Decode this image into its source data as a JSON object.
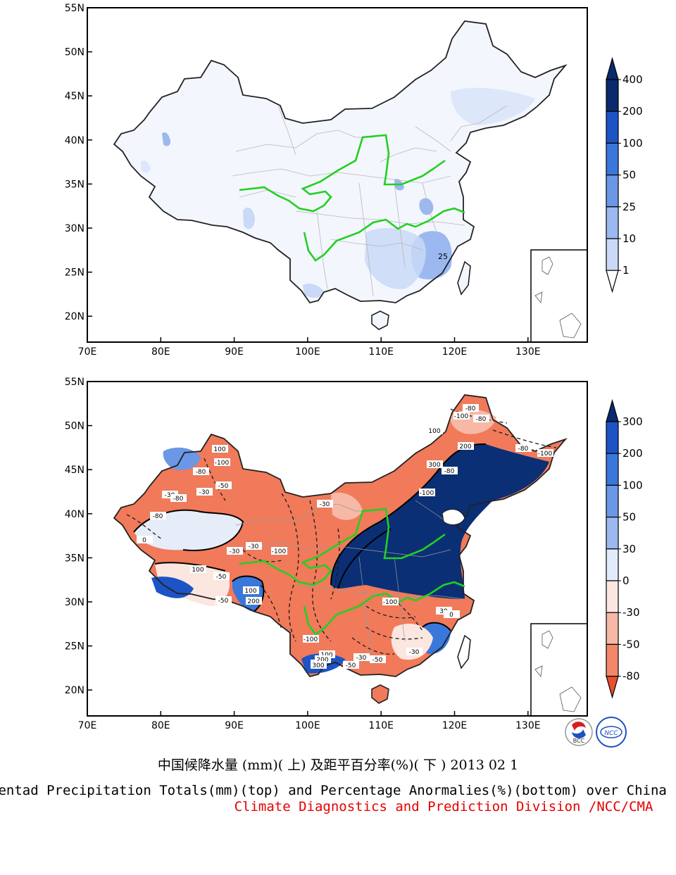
{
  "maps": {
    "lat_labels": [
      "55N",
      "50N",
      "45N",
      "40N",
      "35N",
      "30N",
      "25N",
      "20N"
    ],
    "lon_labels": [
      "70E",
      "80E",
      "90E",
      "100E",
      "110E",
      "120E",
      "130E"
    ],
    "top": {
      "contour_label": "25",
      "colorbar_labels": [
        "400",
        "200",
        "100",
        "50",
        "25",
        "10",
        "1"
      ],
      "colorbar_colors": [
        "#0a2a6e",
        "#1c54c6",
        "#3a77db",
        "#6b97e6",
        "#9bb8f0",
        "#c9d9f7",
        "#ffffff"
      ]
    },
    "bottom": {
      "contour_labels": [
        "-80",
        "-100",
        "-80",
        "100",
        "200",
        "-80",
        "-100",
        "300",
        "-80",
        "100",
        "-100",
        "-80",
        "-50",
        "-30",
        "-30",
        "-80",
        "-80",
        "-100",
        "-30",
        "0",
        "-30",
        "200",
        "100",
        "-50",
        "-100",
        "-30",
        "-30",
        "-50",
        "-100",
        "300",
        "100",
        "200",
        "300",
        "-30",
        "-50",
        "-100",
        "30",
        "0",
        "100",
        "-50"
      ],
      "colorbar_labels": [
        "300",
        "200",
        "100",
        "50",
        "30",
        "0",
        "-30",
        "-50",
        "-80"
      ],
      "colorbar_colors": [
        "#0a2a6e",
        "#1c54c6",
        "#3a77db",
        "#6b97e6",
        "#9bb8f0",
        "#e2ebfb",
        "#fbe6e0",
        "#f7b8a6",
        "#f2876a",
        "#e8502c"
      ]
    }
  },
  "logos": {
    "left": "BCC",
    "right": "NCC"
  },
  "captions": {
    "zh": "中国候降水量 (mm)( 上) 及距平百分率(%)( 下 ) 2013 02 1",
    "en": "Pentad Precipitation Totals(mm)(top) and Percentage Anormalies(%)(bottom) over China",
    "credit": "Climate Diagnostics and Prediction Division /NCC/CMA"
  }
}
